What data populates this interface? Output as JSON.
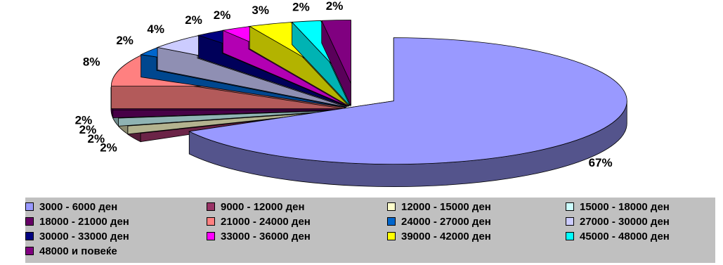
{
  "chart_data": {
    "type": "pie",
    "title": "",
    "slices": [
      {
        "label": "3000 - 6000 ден",
        "value": 67,
        "value_label": "67%",
        "color": "#9999ff"
      },
      {
        "label": "9000 - 12000 ден",
        "value": 2,
        "value_label": "2%",
        "color": "#993366"
      },
      {
        "label": "12000 - 15000 ден",
        "value": 2,
        "value_label": "2%",
        "color": "#ffffcc"
      },
      {
        "label": "15000 - 18000 ден",
        "value": 2,
        "value_label": "2%",
        "color": "#ccffff"
      },
      {
        "label": "18000 - 21000 ден",
        "value": 2,
        "value_label": "2%",
        "color": "#660066"
      },
      {
        "label": "21000 - 24000 ден",
        "value": 8,
        "value_label": "8%",
        "color": "#ff8080"
      },
      {
        "label": "24000 - 27000 ден",
        "value": 2,
        "value_label": "2%",
        "color": "#0066cc"
      },
      {
        "label": "27000 - 30000 ден",
        "value": 4,
        "value_label": "4%",
        "color": "#ccccff"
      },
      {
        "label": "30000 - 33000 ден",
        "value": 2,
        "value_label": "2%",
        "color": "#000080"
      },
      {
        "label": "33000 - 36000 ден",
        "value": 2,
        "value_label": "2%",
        "color": "#ff00ff"
      },
      {
        "label": "39000 - 42000 ден",
        "value": 3,
        "value_label": "3%",
        "color": "#ffff00"
      },
      {
        "label": "45000 - 48000 ден",
        "value": 2,
        "value_label": "2%",
        "color": "#00ffff"
      },
      {
        "label": "48000 и повеќе",
        "value": 2,
        "value_label": "2%",
        "color": "#800080"
      }
    ],
    "legend_position": "bottom",
    "style": "3d-exploded"
  }
}
